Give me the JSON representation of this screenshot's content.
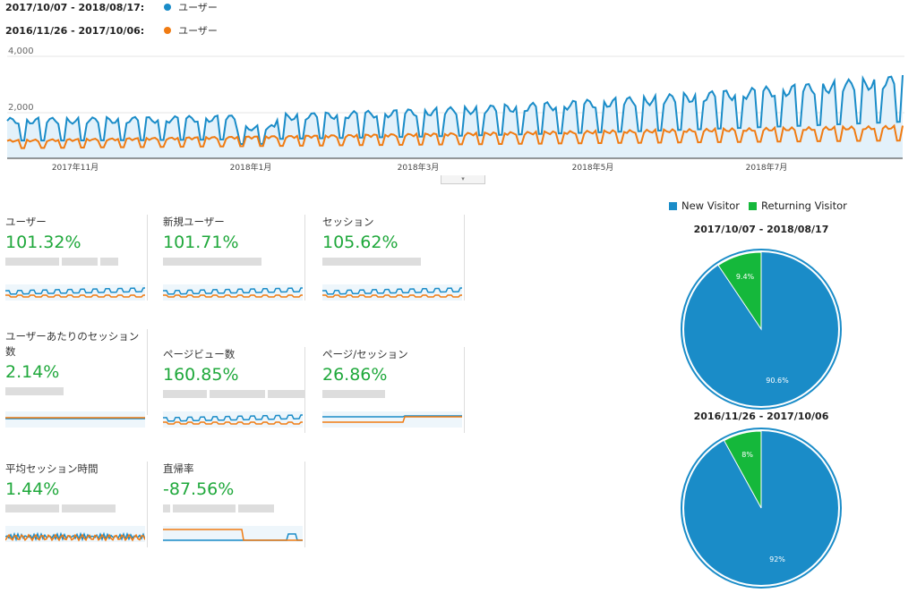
{
  "legend": [
    {
      "range": "2017/10/07 - 2018/08/17:",
      "label": "ユーザー",
      "color": "#1a8cc8"
    },
    {
      "range": "2016/11/26 - 2017/10/06:",
      "label": "ユーザー",
      "color": "#f07b12"
    }
  ],
  "chart_data": {
    "type": "line",
    "ylim": [
      0,
      4000
    ],
    "y_ticks": [
      "4,000",
      "2,000"
    ],
    "x_ticks": [
      "2017年11月",
      "2018年1月",
      "2018年3月",
      "2018年5月",
      "2018年7月"
    ],
    "series": [
      {
        "name": "2017/10/07 - 2018/08/17",
        "color": "#1a8cc8"
      },
      {
        "name": "2016/11/26 - 2017/10/06",
        "color": "#f07b12"
      }
    ]
  },
  "collapse_label": "▾",
  "metrics": [
    {
      "title": "ユーザー",
      "value": "101.32%"
    },
    {
      "title": "新規ユーザー",
      "value": "101.71%"
    },
    {
      "title": "セッション",
      "value": "105.62%"
    },
    {
      "title": "ユーザーあたりのセッション数",
      "value": "2.14%"
    },
    {
      "title": "ページビュー数",
      "value": "160.85%"
    },
    {
      "title": "ページ/セッション",
      "value": "26.86%"
    },
    {
      "title": "平均セッション時間",
      "value": "1.44%"
    },
    {
      "title": "直帰率",
      "value": "-87.56%"
    }
  ],
  "pie_legend": [
    {
      "label": "New Visitor",
      "color": "#1a8cc8"
    },
    {
      "label": "Returning Visitor",
      "color": "#15b83b"
    }
  ],
  "pies": [
    {
      "title": "2017/10/07 - 2018/08/17",
      "new_pct": 90.6,
      "ret_pct": 9.4,
      "new_label": "90.6%",
      "ret_label": "9.4%"
    },
    {
      "title": "2016/11/26 - 2017/10/06",
      "new_pct": 92,
      "ret_pct": 8,
      "new_label": "92%",
      "ret_label": "8%"
    }
  ]
}
